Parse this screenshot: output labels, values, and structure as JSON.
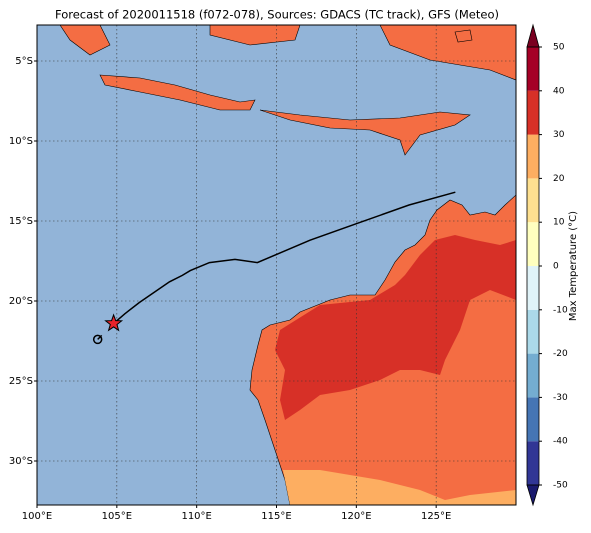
{
  "map": {
    "title": "Forecast of 2020011518 (f072-078), Sources: GDACS (TC track), GFS (Meteo)",
    "xlim": [
      100,
      130
    ],
    "ylim": [
      -32.75,
      -2.75
    ],
    "xticks": [
      {
        "value": 100,
        "label": "100°E"
      },
      {
        "value": 105,
        "label": "105°E"
      },
      {
        "value": 110,
        "label": "110°E"
      },
      {
        "value": 115,
        "label": "115°E"
      },
      {
        "value": 120,
        "label": "120°E"
      },
      {
        "value": 125,
        "label": "125°E"
      }
    ],
    "yticks": [
      {
        "value": -5,
        "label": "5°S"
      },
      {
        "value": -10,
        "label": "10°S"
      },
      {
        "value": -15,
        "label": "15°S"
      },
      {
        "value": -20,
        "label": "20°S"
      },
      {
        "value": -25,
        "label": "25°S"
      },
      {
        "value": -30,
        "label": "30°S"
      }
    ],
    "track": {
      "lon": [
        104.8,
        105.5,
        106.4,
        108.3,
        109.1,
        109.6,
        110.8,
        112.4,
        113.8,
        117.1,
        120.2,
        123.3,
        126.2
      ],
      "lat": [
        -21.4,
        -20.8,
        -20.1,
        -18.8,
        -18.4,
        -18.1,
        -17.6,
        -17.4,
        -17.6,
        -16.2,
        -15.1,
        -14.0,
        -13.2
      ]
    },
    "star": {
      "lon": 104.8,
      "lat": -21.4,
      "color": "#e8222a"
    },
    "start": {
      "lon": 103.8,
      "lat": -22.4
    },
    "colorbar": {
      "label": "Max Temperature (°C)",
      "range": [
        -50,
        50
      ],
      "ticks": [
        -50,
        -40,
        -30,
        -20,
        -10,
        0,
        10,
        20,
        30,
        40,
        50
      ],
      "colors": [
        "#313695",
        "#4575b4",
        "#74add1",
        "#abd9e9",
        "#e0f3f8",
        "#ffffbf",
        "#fee090",
        "#fdae61",
        "#d73027",
        "#a50026"
      ],
      "under": "#1a1a6e",
      "over": "#7a0020"
    }
  }
}
